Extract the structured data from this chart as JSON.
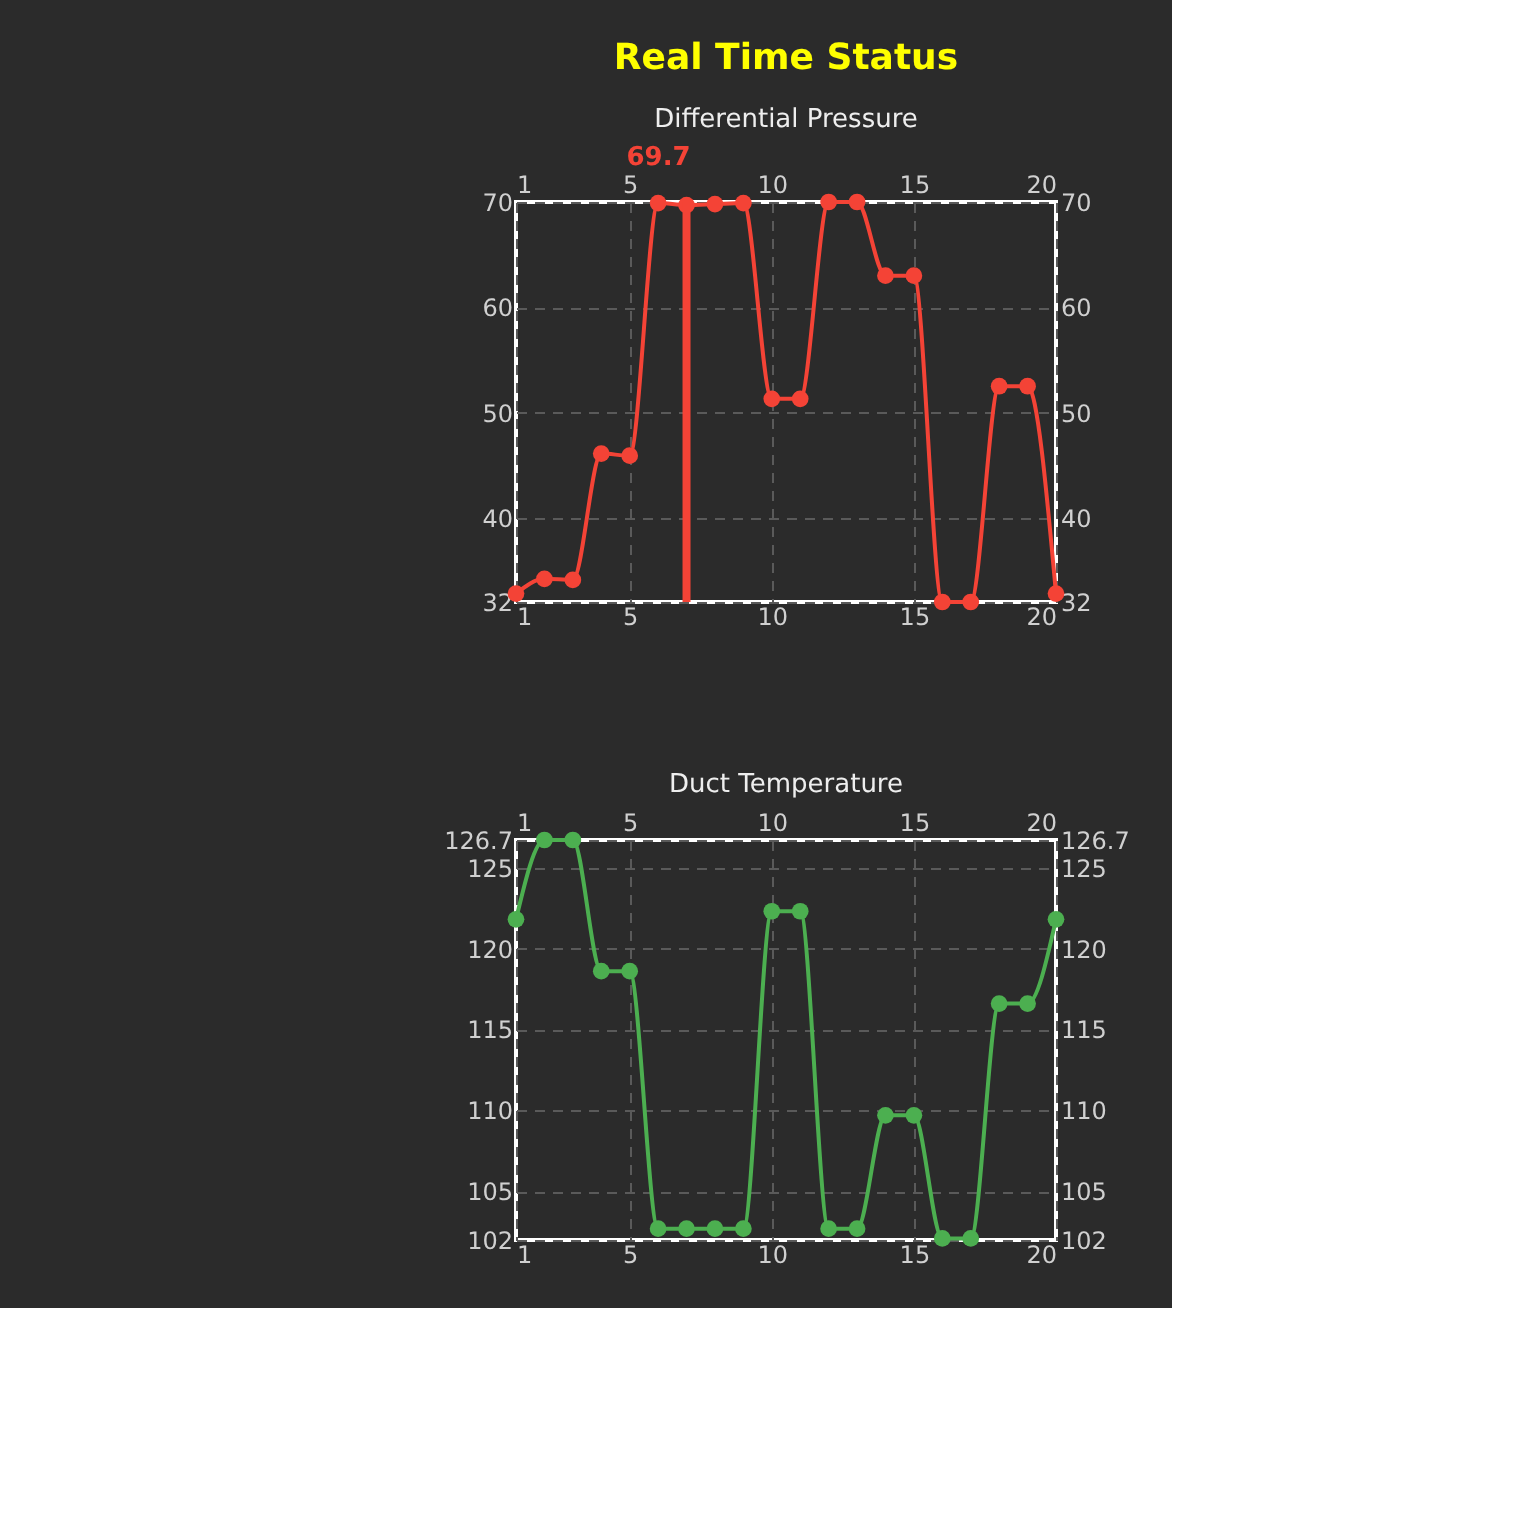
{
  "chart_data": [
    {
      "type": "line",
      "title": "Differential Pressure",
      "x": [
        1,
        2,
        3,
        4,
        5,
        6,
        7,
        8,
        9,
        10,
        11,
        12,
        13,
        14,
        15,
        16,
        17,
        18,
        19,
        20
      ],
      "series": [
        {
          "color": "#f44336",
          "values": [
            32.8,
            34.2,
            34.1,
            46.1,
            45.9,
            69.9,
            69.7,
            69.8,
            69.9,
            51.3,
            51.3,
            70.0,
            70.0,
            63.0,
            63.0,
            32.0,
            32.0,
            52.5,
            52.5,
            32.8
          ]
        }
      ],
      "xlim": [
        1,
        20
      ],
      "xticks": [
        1,
        5,
        10,
        15,
        20
      ],
      "x2lim": [
        1,
        20
      ],
      "x2ticks": [
        1,
        5,
        10,
        15,
        20
      ],
      "ylim": [
        32,
        70
      ],
      "yticks": [
        32,
        40,
        50,
        60,
        70
      ],
      "y2lim": [
        32,
        70
      ],
      "y2ticks": [
        32,
        40,
        50,
        60,
        70
      ],
      "ref_lines": [
        {
          "axis": "x",
          "value": 7,
          "color": "#f44336"
        }
      ],
      "annotations": [
        "Real Time Status",
        {
          "text": "69.7",
          "x": 7,
          "y": 69.7
        }
      ],
      "grid": true,
      "marker": "circle",
      "line_style": "solid"
    },
    {
      "type": "line",
      "title": "Duct Temperature",
      "x": [
        1,
        2,
        3,
        4,
        5,
        6,
        7,
        8,
        9,
        10,
        11,
        12,
        13,
        14,
        15,
        16,
        17,
        18,
        19,
        20
      ],
      "series": [
        {
          "color": "#4caf50",
          "values": [
            121.8,
            126.7,
            126.7,
            118.6,
            118.6,
            102.7,
            102.7,
            102.7,
            102.7,
            122.3,
            122.3,
            102.7,
            102.7,
            109.7,
            109.7,
            102.1,
            102.1,
            116.6,
            116.6,
            121.8
          ]
        }
      ],
      "xlim": [
        1,
        20
      ],
      "xticks": [
        1,
        5,
        10,
        15,
        20
      ],
      "x2lim": [
        1,
        20
      ],
      "x2ticks": [
        1,
        5,
        10,
        15,
        20
      ],
      "ylim": [
        102,
        126.7
      ],
      "yticks": [
        102,
        105,
        110,
        115,
        120,
        125,
        126.7
      ],
      "y2lim": [
        102,
        126.7
      ],
      "y2ticks": [
        102,
        105,
        110,
        115,
        120,
        125,
        126.7
      ],
      "grid": true,
      "marker": "circle",
      "line_style": "solid"
    }
  ]
}
